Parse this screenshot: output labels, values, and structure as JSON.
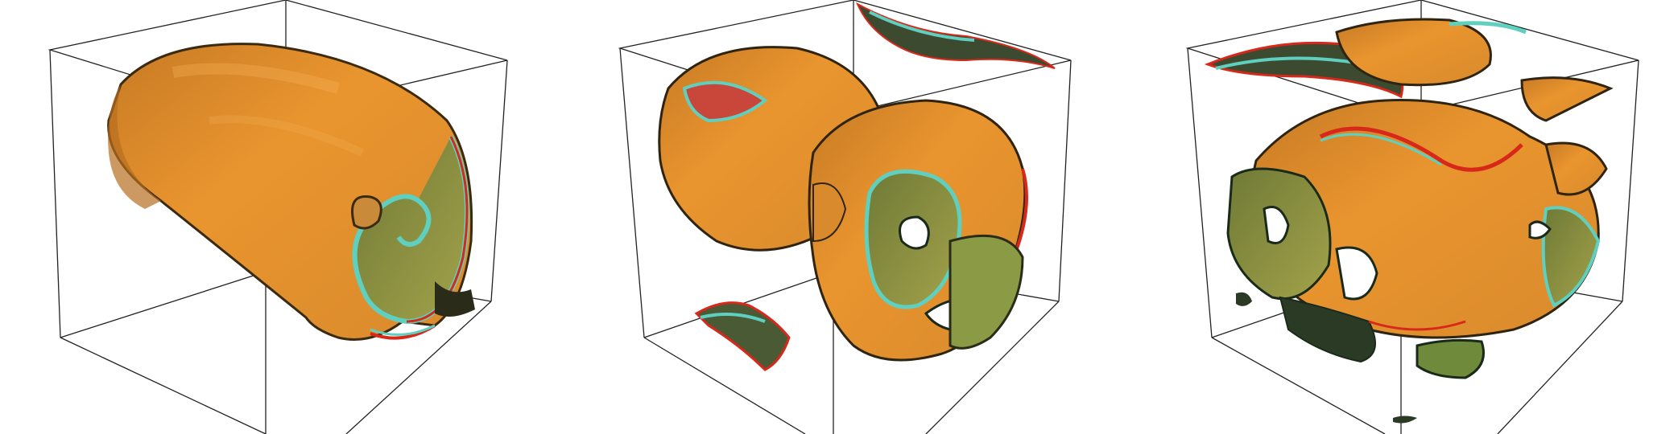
{
  "figure": {
    "panels": [
      {
        "id": "panel-1",
        "shape": "spiral-scroll"
      },
      {
        "id": "panel-2",
        "shape": "twisted-tube-pair"
      },
      {
        "id": "panel-3",
        "shape": "turbulent-tangle"
      }
    ],
    "colors": {
      "background": "#ffffff",
      "box_edge": "#222222",
      "surface_orange": "#e08a2a",
      "surface_light_orange": "#f0a040",
      "surface_olive": "#8a8a3a",
      "rim_red": "#d8281a",
      "rim_cyan": "#5fd0c0",
      "rim_dark": "#1a2a1a"
    }
  }
}
